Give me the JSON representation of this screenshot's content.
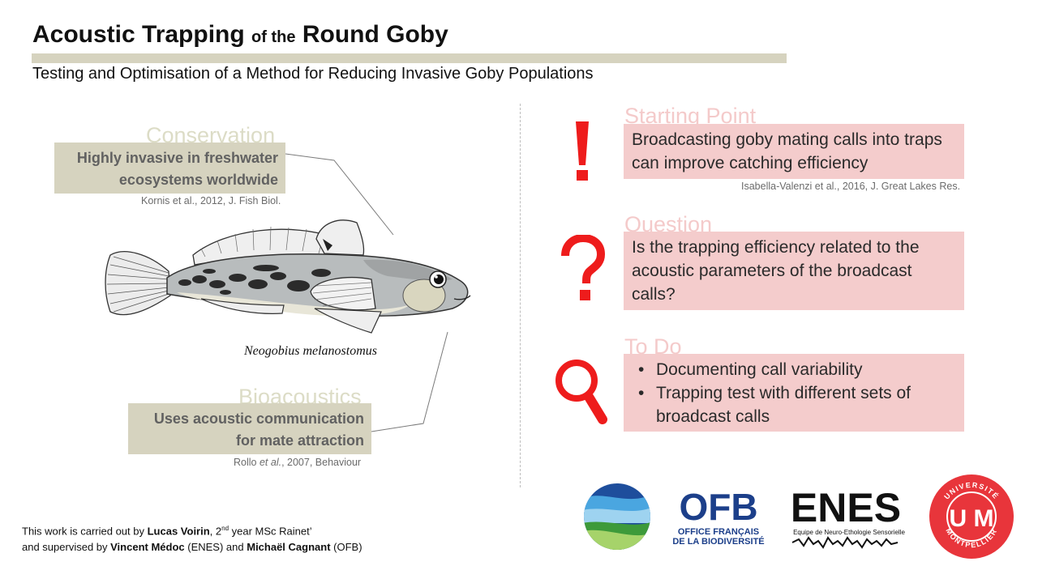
{
  "header": {
    "title_part1": "Acoustic Trapping",
    "title_part2": "of the",
    "title_part3": "Round Goby",
    "subtitle": "Testing and Optimisation of a Method for Reducing Invasive Goby Populations"
  },
  "left": {
    "conservation": {
      "heading": "Conservation",
      "line1": "Highly invasive in freshwater",
      "line2": "ecosystems worldwide",
      "citation": "Kornis et al., 2012, J. Fish Biol."
    },
    "species_name": "Neogobius melanostomus",
    "bioacoustics": {
      "heading": "Bioacoustics",
      "line1": "Uses acoustic communication",
      "line2": "for mate attraction",
      "citation_author": "Rollo ",
      "citation_etal": "et al.",
      "citation_rest": ", 2007, Behaviour"
    }
  },
  "right": {
    "starting_point": {
      "heading": "Starting Point",
      "icon": "exclamation-icon",
      "line1": "Broadcasting goby mating calls into traps",
      "line2": "can improve catching efficiency",
      "citation": "Isabella-Valenzi et al., 2016, J. Great Lakes Res."
    },
    "question": {
      "heading": "Question",
      "icon": "question-icon",
      "line1": "Is the trapping efficiency related to the",
      "line2": "acoustic parameters of the broadcast",
      "line3": "calls?"
    },
    "todo": {
      "heading": "To Do",
      "icon": "magnifier-icon",
      "items": [
        "Documenting call variability",
        "Trapping test with different sets of broadcast calls"
      ]
    }
  },
  "footer": {
    "line1_pre": "This work is carried out by ",
    "student": "Lucas Voirin",
    "line1_mid": ", 2",
    "sup": "nd",
    "line1_post": " year MSc Rainet’",
    "line2_pre": "and supervised by ",
    "sup1": "Vincent Médoc",
    "sup1_org": " (ENES) and ",
    "sup2": "Michaël Cagnant",
    "sup2_org": " (OFB)"
  },
  "logos": {
    "ofb_main": "OFB",
    "ofb_sub1": "OFFICE FRANÇAIS",
    "ofb_sub2": "DE LA BIODIVERSITÉ",
    "enes_main": "ENES",
    "enes_sub": "Equipe de Neuro-Ethologie Sensorielle",
    "um_letters": "U M",
    "um_top": "UNIVERSITÉ",
    "um_bottom": "MONTPELLIER"
  },
  "colors": {
    "accent_red": "#ee1c1c",
    "olive_box": "#d6d3bf",
    "pink_box": "#f4cccc",
    "ofb_blue": "#1c3f8a",
    "um_red": "#e8353b"
  }
}
